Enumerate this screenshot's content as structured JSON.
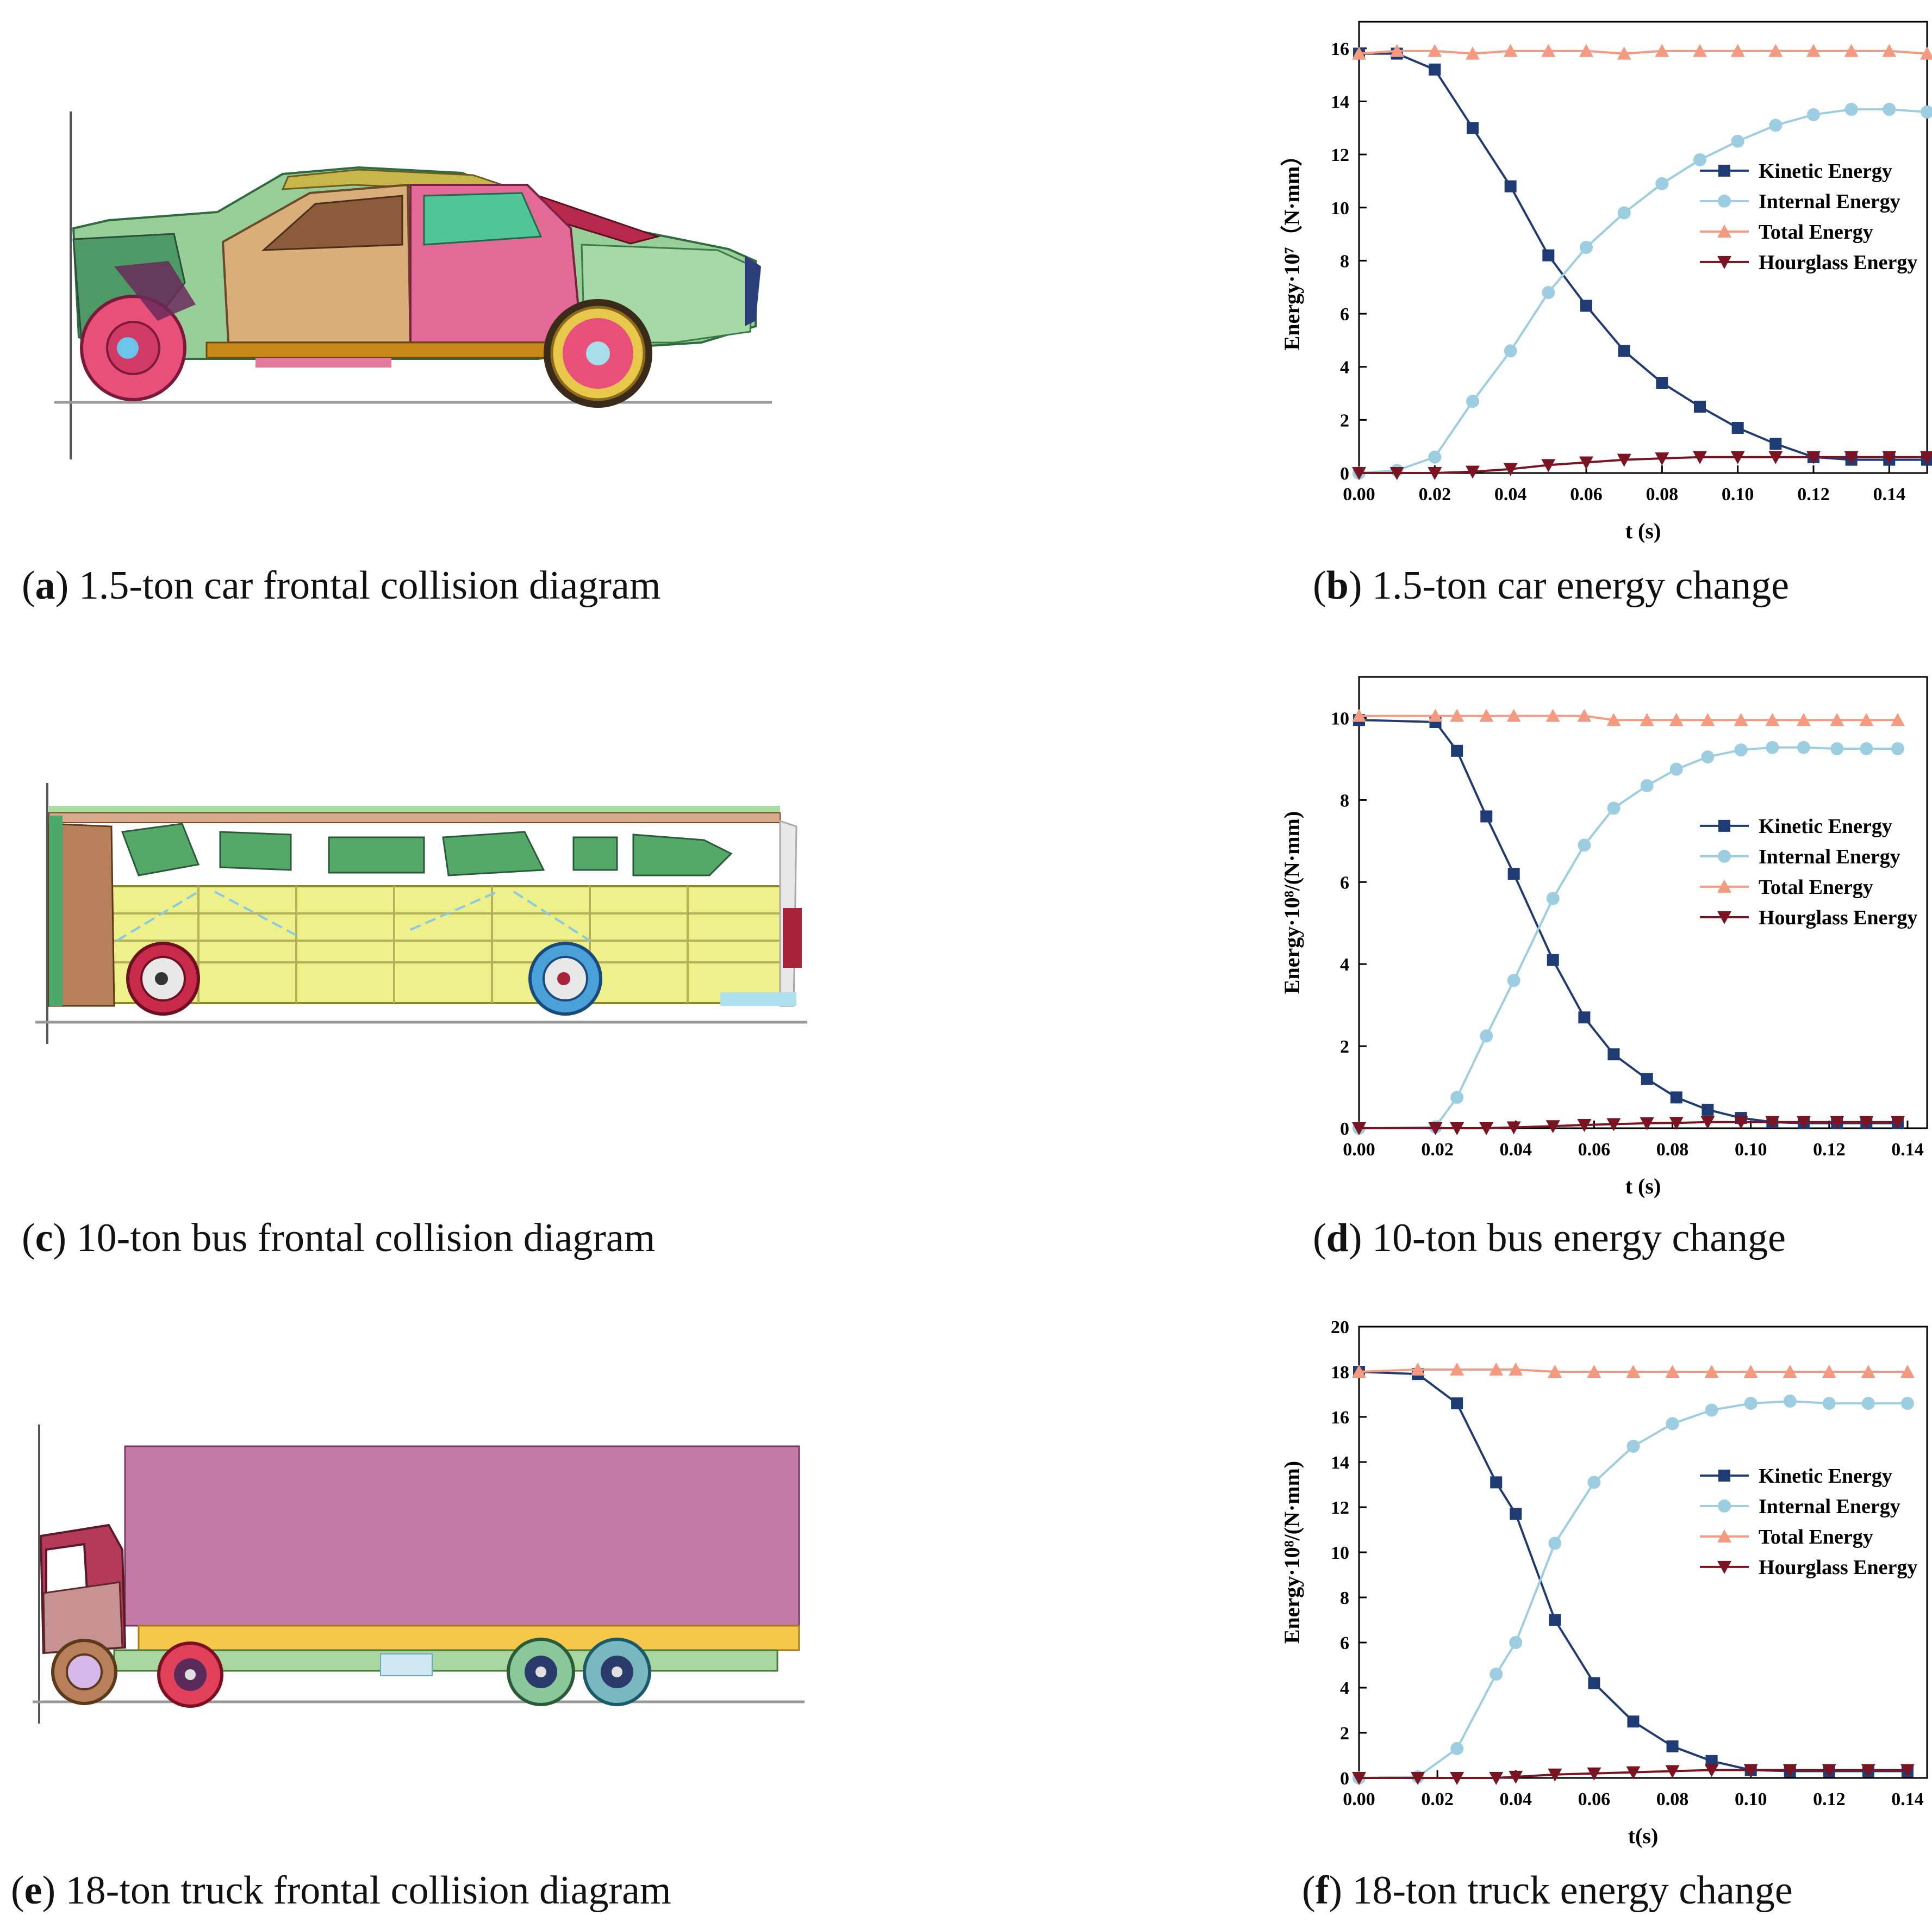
{
  "captions": {
    "a": {
      "letter": "a",
      "text": " 1.5-ton car frontal collision diagram"
    },
    "b": {
      "letter": "b",
      "text": " 1.5-ton car energy change"
    },
    "c": {
      "letter": "c",
      "text": " 10-ton bus frontal collision diagram"
    },
    "d": {
      "letter": "d",
      "text": " 10-ton bus energy change"
    },
    "e": {
      "letter": "e",
      "text": " 18-ton truck frontal collision diagram"
    },
    "f": {
      "letter": "f",
      "text": " 18-ton truck energy change"
    }
  },
  "colors": {
    "kinetic": "#1f3b73",
    "internal": "#9ccde0",
    "total": "#f39a80",
    "hourglass": "#7a1422"
  },
  "chart_data": [
    {
      "id": "b",
      "type": "line",
      "xlabel": "t (s)",
      "ylabel": "Energy·10⁷（N·mm）",
      "xlim": [
        0,
        0.15
      ],
      "ylim": [
        0,
        17
      ],
      "xticks": [
        "0.00",
        "0.02",
        "0.04",
        "0.06",
        "0.08",
        "0.10",
        "0.12",
        "0.14"
      ],
      "xtick_values": [
        0,
        0.02,
        0.04,
        0.06,
        0.08,
        0.1,
        0.12,
        0.14
      ],
      "yticks": [
        "0",
        "2",
        "4",
        "6",
        "8",
        "10",
        "12",
        "14",
        "16"
      ],
      "ytick_values": [
        0,
        2,
        4,
        6,
        8,
        10,
        12,
        14,
        16
      ],
      "legend_position": "center-right",
      "x": [
        0,
        0.01,
        0.02,
        0.03,
        0.04,
        0.05,
        0.06,
        0.07,
        0.08,
        0.09,
        0.1,
        0.11,
        0.12,
        0.13,
        0.14,
        0.15
      ],
      "series": [
        {
          "name": "Kinetic Energy",
          "marker": "square",
          "values": [
            15.8,
            15.8,
            15.2,
            13.0,
            10.8,
            8.2,
            6.3,
            4.6,
            3.4,
            2.5,
            1.7,
            1.1,
            0.6,
            0.5,
            0.5,
            0.5
          ]
        },
        {
          "name": "Internal Energy",
          "marker": "circle",
          "values": [
            0,
            0.1,
            0.6,
            2.7,
            4.6,
            6.8,
            8.5,
            9.8,
            10.9,
            11.8,
            12.5,
            13.1,
            13.5,
            13.7,
            13.7,
            13.6
          ]
        },
        {
          "name": "Total Energy",
          "marker": "triangle-up",
          "values": [
            15.8,
            15.9,
            15.9,
            15.8,
            15.9,
            15.9,
            15.9,
            15.8,
            15.9,
            15.9,
            15.9,
            15.9,
            15.9,
            15.9,
            15.9,
            15.8
          ]
        },
        {
          "name": "Hourglass Energy",
          "marker": "triangle-down",
          "values": [
            0,
            0,
            0,
            0.05,
            0.15,
            0.3,
            0.4,
            0.5,
            0.55,
            0.6,
            0.6,
            0.6,
            0.6,
            0.6,
            0.6,
            0.6
          ]
        }
      ]
    },
    {
      "id": "d",
      "type": "line",
      "xlabel": "t (s)",
      "ylabel": "Energy·10⁸/(N·mm)",
      "xlim": [
        0,
        0.145
      ],
      "ylim": [
        0,
        11
      ],
      "xticks": [
        "0.00",
        "0.02",
        "0.04",
        "0.06",
        "0.08",
        "0.10",
        "0.12",
        "0.14"
      ],
      "xtick_values": [
        0,
        0.02,
        0.04,
        0.06,
        0.08,
        0.1,
        0.12,
        0.14
      ],
      "yticks": [
        "0",
        "2",
        "4",
        "6",
        "8",
        "10"
      ],
      "ytick_values": [
        0,
        2,
        4,
        6,
        8,
        10
      ],
      "legend_position": "center-right",
      "x": [
        0,
        0.0195,
        0.025,
        0.0325,
        0.0395,
        0.0495,
        0.0575,
        0.065,
        0.0735,
        0.081,
        0.089,
        0.0975,
        0.1055,
        0.1135,
        0.122,
        0.1295,
        0.1375
      ],
      "series": [
        {
          "name": "Kinetic Energy",
          "marker": "square",
          "values": [
            9.95,
            9.9,
            9.2,
            7.6,
            6.2,
            4.1,
            2.7,
            1.8,
            1.2,
            0.75,
            0.45,
            0.25,
            0.15,
            0.12,
            0.12,
            0.12,
            0.12
          ]
        },
        {
          "name": "Internal Energy",
          "marker": "circle",
          "values": [
            0,
            0.03,
            0.75,
            2.25,
            3.6,
            5.6,
            6.9,
            7.8,
            8.35,
            8.75,
            9.05,
            9.22,
            9.28,
            9.28,
            9.25,
            9.25,
            9.25
          ]
        },
        {
          "name": "Total Energy",
          "marker": "triangle-up",
          "values": [
            10.05,
            10.05,
            10.05,
            10.05,
            10.05,
            10.05,
            10.05,
            9.95,
            9.95,
            9.95,
            9.95,
            9.95,
            9.95,
            9.95,
            9.95,
            9.95,
            9.95
          ]
        },
        {
          "name": "Hourglass Energy",
          "marker": "triangle-down",
          "values": [
            0,
            0,
            0,
            0,
            0.02,
            0.05,
            0.08,
            0.1,
            0.12,
            0.13,
            0.15,
            0.15,
            0.15,
            0.15,
            0.15,
            0.15,
            0.15
          ]
        }
      ]
    },
    {
      "id": "f",
      "type": "line",
      "xlabel": "t(s)",
      "ylabel": "Energy·10⁸/(N·mm)",
      "xlim": [
        0,
        0.145
      ],
      "ylim": [
        0,
        20
      ],
      "xticks": [
        "0.00",
        "0.02",
        "0.04",
        "0.06",
        "0.08",
        "0.10",
        "0.12",
        "0.14"
      ],
      "xtick_values": [
        0,
        0.02,
        0.04,
        0.06,
        0.08,
        0.1,
        0.12,
        0.14
      ],
      "yticks": [
        "0",
        "2",
        "4",
        "6",
        "8",
        "10",
        "12",
        "14",
        "16",
        "18",
        "20"
      ],
      "ytick_values": [
        0,
        2,
        4,
        6,
        8,
        10,
        12,
        14,
        16,
        18,
        20
      ],
      "legend_position": "center-right",
      "x": [
        0,
        0.015,
        0.025,
        0.035,
        0.04,
        0.05,
        0.06,
        0.07,
        0.08,
        0.09,
        0.1,
        0.11,
        0.12,
        0.13,
        0.14
      ],
      "series": [
        {
          "name": "Kinetic Energy",
          "marker": "square",
          "values": [
            18.0,
            17.9,
            16.6,
            13.1,
            11.7,
            7.0,
            4.2,
            2.5,
            1.4,
            0.75,
            0.35,
            0.3,
            0.3,
            0.3,
            0.3
          ]
        },
        {
          "name": "Internal Energy",
          "marker": "circle",
          "values": [
            0,
            0.05,
            1.3,
            4.6,
            6.0,
            10.4,
            13.1,
            14.7,
            15.7,
            16.3,
            16.6,
            16.7,
            16.6,
            16.6,
            16.6
          ]
        },
        {
          "name": "Total Energy",
          "marker": "triangle-up",
          "values": [
            18.0,
            18.1,
            18.1,
            18.1,
            18.1,
            18.0,
            18.0,
            18.0,
            18.0,
            18.0,
            18.0,
            18.0,
            18.0,
            18.0,
            18.0
          ]
        },
        {
          "name": "Hourglass Energy",
          "marker": "triangle-down",
          "values": [
            0,
            0,
            0,
            0,
            0.05,
            0.15,
            0.2,
            0.25,
            0.3,
            0.35,
            0.35,
            0.35,
            0.35,
            0.35,
            0.35
          ]
        }
      ]
    }
  ]
}
